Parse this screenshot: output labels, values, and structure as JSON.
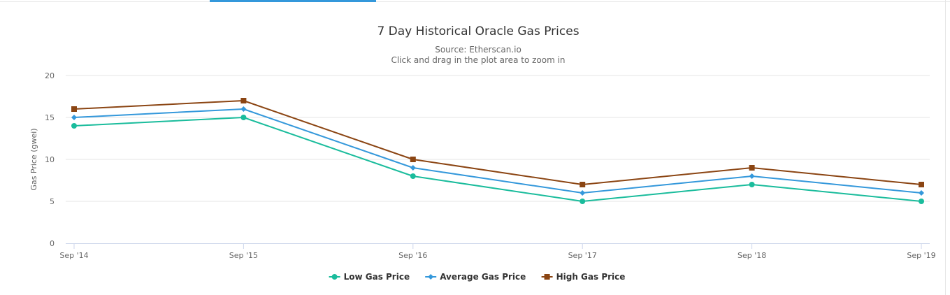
{
  "chart_data": {
    "type": "line",
    "title": "7 Day Historical Oracle Gas Prices",
    "subtitle": "Source: Etherscan.io",
    "subtitle2": "Click and drag in the plot area to zoom in",
    "ylabel": "Gas Price (gwei)",
    "xlabel": "",
    "ylim": [
      0,
      20
    ],
    "yticks": [
      0,
      5,
      10,
      15,
      20
    ],
    "categories": [
      "Sep '14",
      "Sep '15",
      "Sep '16",
      "Sep '17",
      "Sep '18",
      "Sep '19"
    ],
    "grid": true,
    "legend_position": "bottom-center",
    "series": [
      {
        "name": "Low Gas Price",
        "color": "#1abc9c",
        "marker": "circle",
        "values": [
          14,
          15,
          8,
          5,
          7,
          5
        ]
      },
      {
        "name": "Average Gas Price",
        "color": "#3498db",
        "marker": "diamond",
        "values": [
          15,
          16,
          9,
          6,
          8,
          6
        ]
      },
      {
        "name": "High Gas Price",
        "color": "#8b4513",
        "marker": "square",
        "values": [
          16,
          17,
          10,
          7,
          9,
          7
        ]
      }
    ]
  }
}
